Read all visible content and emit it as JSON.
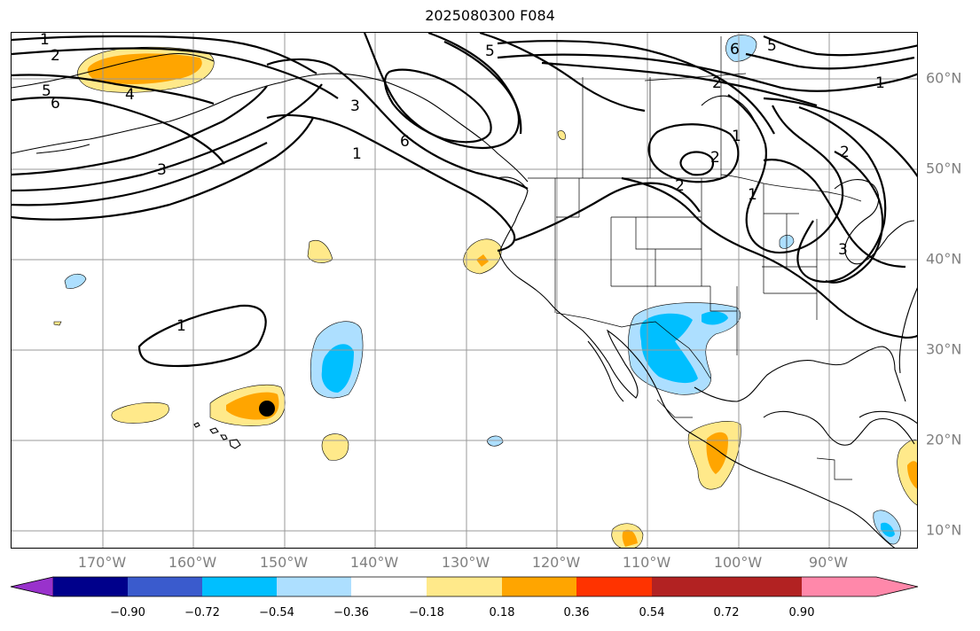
{
  "title": "2025080300 F084",
  "map": {
    "longitude_labels": [
      "170°W",
      "160°W",
      "150°W",
      "140°W",
      "130°W",
      "120°W",
      "110°W",
      "100°W",
      "90°W"
    ],
    "latitude_labels": [
      "60°N",
      "50°N",
      "40°N",
      "30°N",
      "20°N",
      "10°N"
    ],
    "contour_labels": [
      "1",
      "2",
      "5",
      "6",
      "4",
      "3",
      "1",
      "5",
      "6",
      "3",
      "2",
      "1",
      "2",
      "6",
      "5",
      "1",
      "2",
      "2",
      "1",
      "3",
      "1"
    ]
  },
  "colorbar": {
    "tick_labels": [
      "−0.90",
      "−0.72",
      "−0.54",
      "−0.36",
      "−0.18",
      "0.18",
      "0.36",
      "0.54",
      "0.72",
      "0.90"
    ],
    "colors": [
      "#9932CC",
      "#00008B",
      "#3A5BCD",
      "#00BFFF",
      "#ADDFFF",
      "#FFFFFF",
      "#FFE98A",
      "#FFA500",
      "#FF3300",
      "#B22222",
      "#FF88AA"
    ]
  },
  "colors": {
    "gridline": "#999999",
    "coastline": "#000000",
    "contour": "#000000",
    "label_gray": "#808080"
  }
}
